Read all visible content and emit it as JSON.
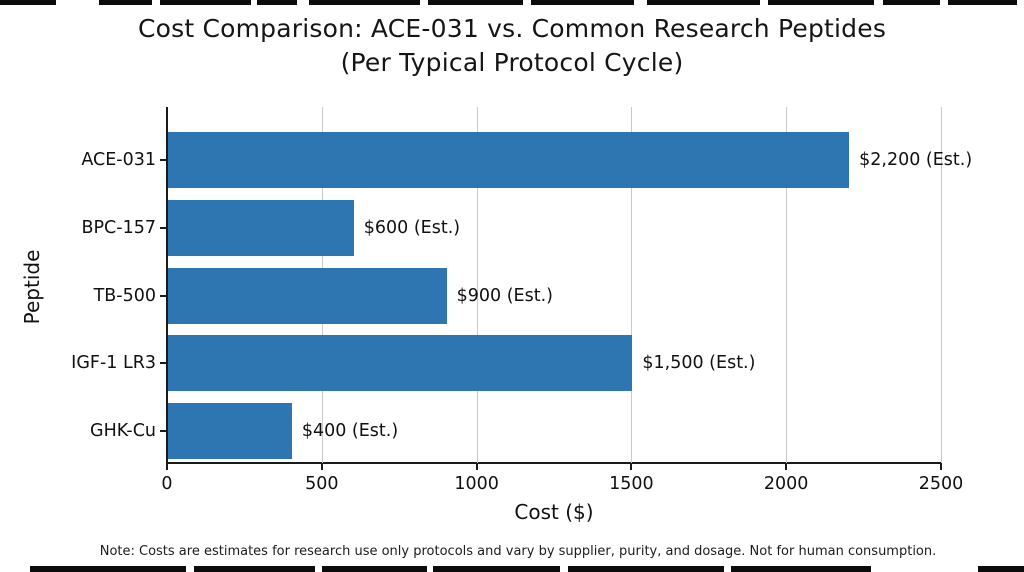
{
  "title": {
    "line1": "Cost Comparison: ACE-031 vs. Common Research Peptides",
    "line2": "(Per Typical Protocol Cycle)"
  },
  "note": "Note: Costs are estimates for research use only protocols and vary by supplier, purity, and dosage. Not for human consumption.",
  "chart_data": {
    "type": "bar",
    "orientation": "horizontal",
    "title": "Cost Comparison: ACE-031 vs. Common Research Peptides (Per Typical Protocol Cycle)",
    "categories": [
      "ACE-031",
      "BPC-157",
      "TB-500",
      "IGF-1 LR3",
      "GHK-Cu"
    ],
    "values": [
      2200,
      600,
      900,
      1500,
      400
    ],
    "value_labels": [
      "$2,200 (Est.)",
      "$600 (Est.)",
      "$900 (Est.)",
      "$1,500 (Est.)",
      "$400 (Est.)"
    ],
    "xlabel": "Cost ($)",
    "ylabel": "Peptide",
    "xlim": [
      0,
      2500
    ],
    "xticks": [
      "0",
      "500",
      "1000",
      "1500",
      "2000",
      "2500"
    ],
    "xtick_values": [
      0,
      500,
      1000,
      1500,
      2000,
      2500
    ],
    "grid": "vertical",
    "legend": "none",
    "bar_color": "#2e76b2",
    "gridline_color": "#c9c9c9"
  }
}
